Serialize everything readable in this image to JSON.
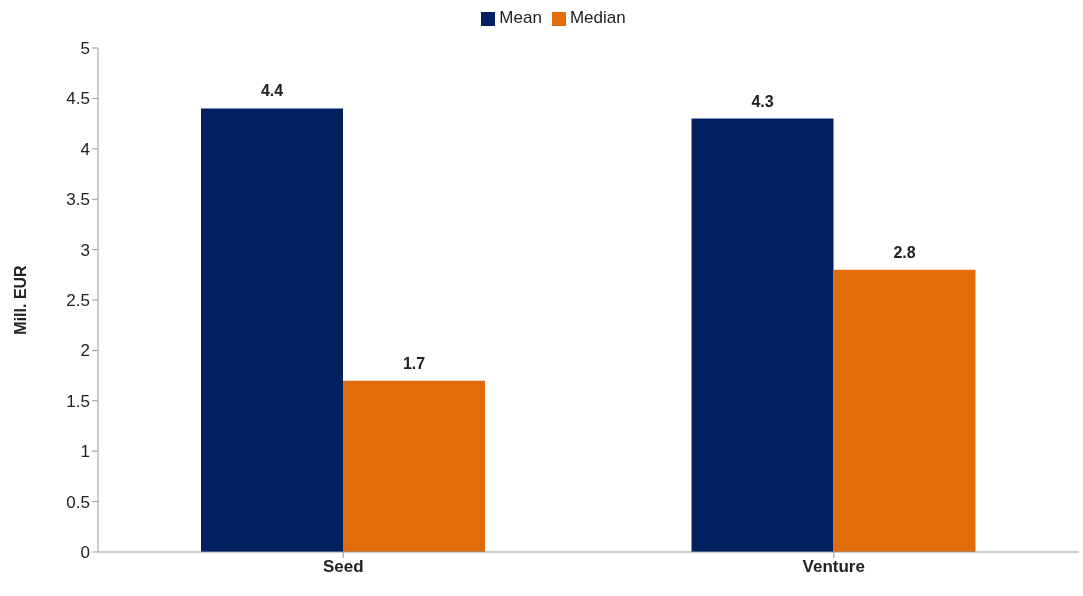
{
  "chart_data": {
    "type": "bar",
    "ylabel": "Mill. EUR",
    "categories": [
      "Seed",
      "Venture"
    ],
    "series": [
      {
        "name": "Mean",
        "color": "#002060",
        "values": [
          4.4,
          4.3
        ]
      },
      {
        "name": "Median",
        "color": "#e36c0a",
        "values": [
          1.7,
          2.8
        ]
      }
    ],
    "ylim": [
      0,
      5
    ],
    "yticks": [
      0,
      0.5,
      1,
      1.5,
      2,
      2.5,
      3,
      3.5,
      4,
      4.5,
      5
    ],
    "grid": false,
    "legend": "top",
    "data_labels": true
  }
}
